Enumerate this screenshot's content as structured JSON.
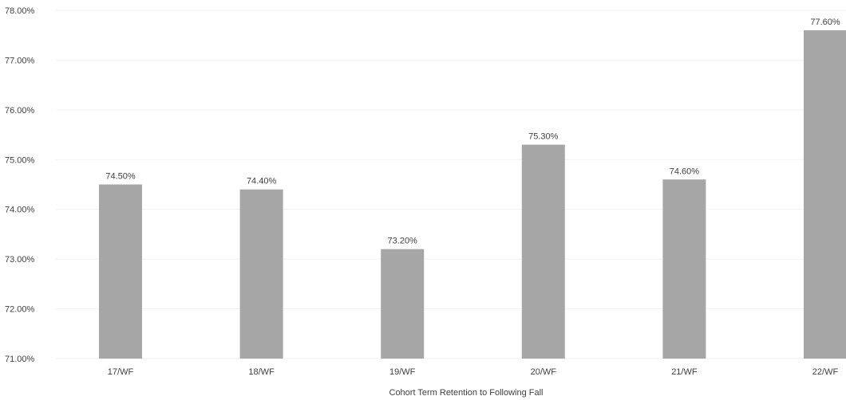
{
  "chart_data": {
    "type": "bar",
    "categories": [
      "17/WF",
      "18/WF",
      "19/WF",
      "20/WF",
      "21/WF",
      "22/WF"
    ],
    "values": [
      74.5,
      74.4,
      73.2,
      75.3,
      74.6,
      77.6
    ],
    "data_labels": [
      "74.50%",
      "74.40%",
      "73.20%",
      "75.30%",
      "74.60%",
      "77.60%"
    ],
    "title": "",
    "xlabel": "Cohort Term Retention to Following Fall",
    "ylabel": "",
    "ylim": [
      71,
      78
    ],
    "yticks": [
      71,
      72,
      73,
      74,
      75,
      76,
      77,
      78
    ],
    "ytick_labels": [
      "71.00%",
      "72.00%",
      "73.00%",
      "74.00%",
      "75.00%",
      "76.00%",
      "77.00%",
      "78.00%"
    ],
    "grid": true,
    "legend": "none",
    "bar_color": "#a6a6a6",
    "text_color": "#404040"
  }
}
